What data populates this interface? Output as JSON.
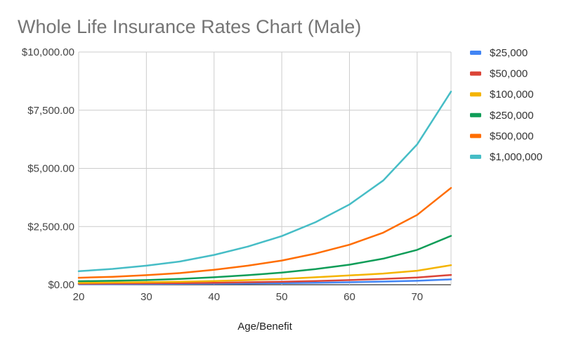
{
  "chart_data": {
    "type": "line",
    "title": "Whole Life Insurance Rates Chart (Male)",
    "xlabel": "Age/Benefit",
    "ylabel": "",
    "x": [
      20,
      25,
      30,
      35,
      40,
      45,
      50,
      55,
      60,
      65,
      70,
      75
    ],
    "xlim": [
      20,
      75
    ],
    "xticks": [
      20,
      30,
      40,
      50,
      60,
      70
    ],
    "xtick_labels": [
      "20",
      "30",
      "40",
      "50",
      "60",
      "70"
    ],
    "ylim": [
      0,
      10000
    ],
    "yticks": [
      0,
      2500,
      5000,
      7500,
      10000
    ],
    "ytick_labels": [
      "$0.00",
      "$2,500.00",
      "$5,000.00",
      "$7,500.00",
      "$10,000.00"
    ],
    "grid": true,
    "legend_position": "right",
    "series": [
      {
        "name": "$25,000",
        "color": "#4285f4",
        "values": [
          20,
          25,
          30,
          35,
          45,
          55,
          70,
          85,
          105,
          135,
          170,
          230
        ]
      },
      {
        "name": "$50,000",
        "color": "#db4437",
        "values": [
          45,
          50,
          60,
          70,
          85,
          105,
          130,
          160,
          200,
          250,
          310,
          420
        ]
      },
      {
        "name": "$100,000",
        "color": "#f4b400",
        "values": [
          80,
          95,
          110,
          130,
          160,
          200,
          250,
          320,
          400,
          480,
          600,
          840
        ]
      },
      {
        "name": "$250,000",
        "color": "#0f9d58",
        "values": [
          150,
          170,
          200,
          250,
          320,
          410,
          520,
          670,
          860,
          1120,
          1500,
          2100
        ]
      },
      {
        "name": "$500,000",
        "color": "#ff6d00",
        "values": [
          300,
          340,
          410,
          500,
          640,
          820,
          1040,
          1340,
          1720,
          2240,
          3000,
          4160
        ]
      },
      {
        "name": "$1,000,000",
        "color": "#46bdc6",
        "values": [
          580,
          680,
          820,
          1000,
          1280,
          1640,
          2090,
          2690,
          3450,
          4480,
          6030,
          8300
        ]
      }
    ]
  }
}
